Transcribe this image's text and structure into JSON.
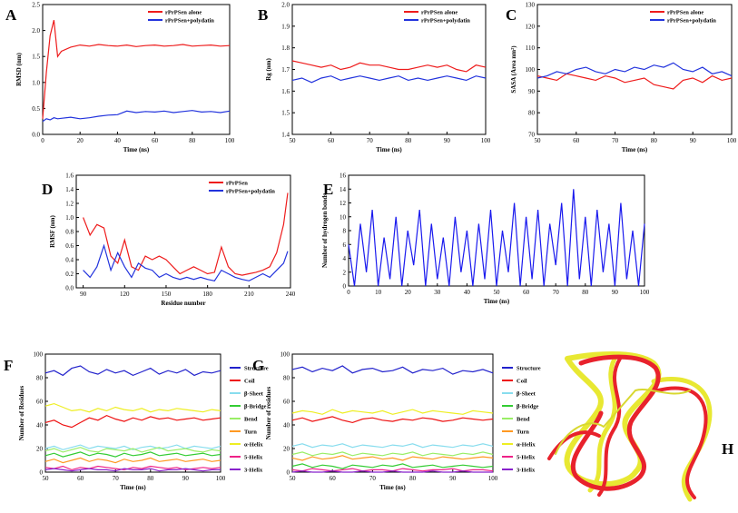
{
  "chart_data": [
    {
      "type": "line",
      "panel": "A",
      "xlabel": "Time (ns)",
      "ylabel": "RMSD (nm)",
      "legend": "upper right",
      "x": [
        0,
        2,
        4,
        6,
        8,
        10,
        15,
        20,
        25,
        30,
        35,
        40,
        45,
        50,
        55,
        60,
        65,
        70,
        75,
        80,
        85,
        90,
        95,
        100
      ],
      "xlim": [
        0,
        100
      ],
      "xticks": [
        0,
        20,
        40,
        60,
        80,
        100
      ],
      "ylim": [
        0,
        2.5
      ],
      "yticks": [
        {
          "value": 0,
          "label": "0.0"
        },
        0.5,
        {
          "value": 1,
          "label": "1.0"
        },
        1.5,
        {
          "value": 2,
          "label": "2.0"
        },
        2.5
      ],
      "series": [
        {
          "name": "rPrPSen alone",
          "color": "#ee1c1c",
          "values": [
            0.3,
            1.2,
            1.9,
            2.2,
            1.5,
            1.6,
            1.68,
            1.72,
            1.7,
            1.73,
            1.71,
            1.7,
            1.72,
            1.69,
            1.71,
            1.72,
            1.7,
            1.71,
            1.73,
            1.7,
            1.71,
            1.72,
            1.7,
            1.71
          ]
        },
        {
          "name": "rPrPSen+polydatin",
          "color": "#2233dd",
          "values": [
            0.25,
            0.3,
            0.28,
            0.32,
            0.3,
            0.31,
            0.33,
            0.3,
            0.32,
            0.35,
            0.37,
            0.38,
            0.45,
            0.42,
            0.44,
            0.43,
            0.45,
            0.42,
            0.44,
            0.46,
            0.43,
            0.44,
            0.42,
            0.45
          ]
        }
      ]
    },
    {
      "type": "line",
      "panel": "B",
      "xlabel": "Time (ns)",
      "ylabel": "Rg (nm)",
      "legend": "upper right",
      "x": [
        50,
        52.5,
        55,
        57.5,
        60,
        62.5,
        65,
        67.5,
        70,
        72.5,
        75,
        77.5,
        80,
        82.5,
        85,
        87.5,
        90,
        92.5,
        95,
        97.5,
        100
      ],
      "xlim": [
        50,
        100
      ],
      "xticks": [
        50,
        60,
        70,
        80,
        90,
        100
      ],
      "ylim": [
        1.4,
        2.0
      ],
      "yticks": [
        1.4,
        1.5,
        1.6,
        1.7,
        1.8,
        1.9,
        {
          "value": 2,
          "label": "2.0"
        }
      ],
      "series": [
        {
          "name": "rPrPSen alone",
          "color": "#ee1c1c",
          "values": [
            1.74,
            1.73,
            1.72,
            1.71,
            1.72,
            1.7,
            1.71,
            1.73,
            1.72,
            1.72,
            1.71,
            1.7,
            1.7,
            1.71,
            1.72,
            1.71,
            1.72,
            1.7,
            1.69,
            1.72,
            1.71
          ]
        },
        {
          "name": "rPrPSen+polydatin",
          "color": "#2233dd",
          "values": [
            1.65,
            1.66,
            1.64,
            1.66,
            1.67,
            1.65,
            1.66,
            1.67,
            1.66,
            1.65,
            1.66,
            1.67,
            1.65,
            1.66,
            1.65,
            1.66,
            1.67,
            1.66,
            1.65,
            1.67,
            1.66
          ]
        }
      ]
    },
    {
      "type": "line",
      "panel": "C",
      "xlabel": "Time (ns)",
      "ylabel": "SASA (Area nm²)",
      "legend": "upper right",
      "x": [
        50,
        52.5,
        55,
        57.5,
        60,
        62.5,
        65,
        67.5,
        70,
        72.5,
        75,
        77.5,
        80,
        82.5,
        85,
        87.5,
        90,
        92.5,
        95,
        97.5,
        100
      ],
      "xlim": [
        50,
        100
      ],
      "xticks": [
        50,
        60,
        70,
        80,
        90,
        100
      ],
      "ylim": [
        70,
        130
      ],
      "yticks": [
        70,
        80,
        90,
        100,
        110,
        120,
        130
      ],
      "series": [
        {
          "name": "rPrPSen alone",
          "color": "#ee1c1c",
          "values": [
            97,
            96,
            95,
            98,
            97,
            96,
            95,
            97,
            96,
            94,
            95,
            96,
            93,
            92,
            91,
            95,
            96,
            94,
            97,
            95,
            96
          ]
        },
        {
          "name": "rPrPSen+polydatin",
          "color": "#2233dd",
          "values": [
            96,
            97,
            99,
            98,
            100,
            101,
            99,
            98,
            100,
            99,
            101,
            100,
            102,
            101,
            103,
            100,
            99,
            101,
            98,
            99,
            97
          ]
        }
      ]
    },
    {
      "type": "line",
      "panel": "D",
      "xlabel": "Residue number",
      "ylabel": "RMSF (nm)",
      "legend": "upper right",
      "x": [
        90,
        95,
        100,
        105,
        110,
        115,
        120,
        125,
        130,
        135,
        140,
        145,
        150,
        155,
        160,
        165,
        170,
        175,
        180,
        185,
        190,
        195,
        200,
        205,
        210,
        215,
        220,
        225,
        230,
        235,
        238
      ],
      "xlim": [
        85,
        240
      ],
      "xticks": [
        90,
        120,
        150,
        180,
        210,
        240
      ],
      "ylim": [
        0,
        1.6
      ],
      "yticks": [
        {
          "value": 0,
          "label": "0.0"
        },
        0.2,
        0.4,
        0.6,
        0.8,
        {
          "value": 1,
          "label": "1.0"
        },
        1.2,
        1.4,
        1.6
      ],
      "series": [
        {
          "name": "rPrPSen",
          "color": "#ee1c1c",
          "values": [
            1.0,
            0.75,
            0.9,
            0.85,
            0.45,
            0.35,
            0.68,
            0.3,
            0.25,
            0.45,
            0.4,
            0.45,
            0.4,
            0.3,
            0.2,
            0.25,
            0.3,
            0.25,
            0.2,
            0.22,
            0.58,
            0.3,
            0.2,
            0.18,
            0.2,
            0.22,
            0.25,
            0.3,
            0.5,
            0.9,
            1.35
          ]
        },
        {
          "name": "rPrPSen+polydatin",
          "color": "#2233dd",
          "values": [
            0.25,
            0.15,
            0.3,
            0.6,
            0.25,
            0.5,
            0.3,
            0.15,
            0.35,
            0.28,
            0.25,
            0.15,
            0.2,
            0.15,
            0.12,
            0.15,
            0.12,
            0.15,
            0.12,
            0.1,
            0.25,
            0.2,
            0.15,
            0.12,
            0.1,
            0.15,
            0.2,
            0.15,
            0.25,
            0.35,
            0.52
          ]
        }
      ]
    },
    {
      "type": "line",
      "panel": "E",
      "xlabel": "Time (ns)",
      "ylabel": "Number of hydrogen bonds",
      "legend": "none",
      "x": [
        0,
        2,
        4,
        6,
        8,
        10,
        12,
        14,
        16,
        18,
        20,
        22,
        24,
        26,
        28,
        30,
        32,
        34,
        36,
        38,
        40,
        42,
        44,
        46,
        48,
        50,
        52,
        54,
        56,
        58,
        60,
        62,
        64,
        66,
        68,
        70,
        72,
        74,
        76,
        78,
        80,
        82,
        84,
        86,
        88,
        90,
        92,
        94,
        96,
        98,
        100
      ],
      "xlim": [
        0,
        100
      ],
      "xticks": [
        0,
        10,
        20,
        30,
        40,
        50,
        60,
        70,
        80,
        90,
        100
      ],
      "ylim": [
        0,
        16
      ],
      "yticks": [
        0,
        2,
        4,
        6,
        8,
        10,
        12,
        14,
        16
      ],
      "series": [
        {
          "name": null,
          "color": "#1a1aee",
          "values": [
            6,
            0,
            9,
            2,
            11,
            0,
            7,
            1,
            10,
            0,
            8,
            3,
            11,
            0,
            9,
            1,
            7,
            0,
            10,
            2,
            8,
            0,
            9,
            1,
            11,
            0,
            8,
            2,
            12,
            0,
            10,
            1,
            11,
            0,
            9,
            3,
            12,
            0,
            14,
            1,
            10,
            0,
            11,
            2,
            9,
            0,
            12,
            1,
            8,
            0,
            9
          ]
        }
      ]
    },
    {
      "type": "line",
      "panel": "F",
      "xlabel": "Time (ns)",
      "ylabel": "Number of Residues",
      "legend": "right",
      "x": [
        50,
        52.5,
        55,
        57.5,
        60,
        62.5,
        65,
        67.5,
        70,
        72.5,
        75,
        77.5,
        80,
        82.5,
        85,
        87.5,
        90,
        92.5,
        95,
        97.5,
        100
      ],
      "xlim": [
        50,
        100
      ],
      "xticks": [
        50,
        60,
        70,
        80,
        90,
        100
      ],
      "ylim": [
        0,
        100
      ],
      "yticks": [
        0,
        20,
        40,
        60,
        80,
        100
      ],
      "series": [
        {
          "name": "Structure",
          "color": "#2222cc",
          "values": [
            84,
            86,
            82,
            88,
            90,
            85,
            83,
            87,
            84,
            86,
            82,
            85,
            88,
            83,
            86,
            84,
            87,
            82,
            85,
            84,
            86
          ]
        },
        {
          "name": "Coil",
          "color": "#ee1111",
          "values": [
            42,
            44,
            40,
            38,
            42,
            46,
            44,
            48,
            45,
            43,
            46,
            44,
            47,
            45,
            46,
            44,
            45,
            46,
            44,
            45,
            46
          ]
        },
        {
          "name": "β-Sheet",
          "color": "#88ddee",
          "values": [
            20,
            22,
            19,
            21,
            23,
            20,
            22,
            21,
            20,
            22,
            19,
            21,
            22,
            20,
            21,
            23,
            20,
            22,
            21,
            20,
            22
          ]
        },
        {
          "name": "β-Bridge",
          "color": "#33cc33",
          "values": [
            14,
            16,
            13,
            15,
            17,
            14,
            16,
            15,
            13,
            16,
            14,
            15,
            17,
            14,
            15,
            16,
            14,
            15,
            16,
            14,
            15
          ]
        },
        {
          "name": "Bend",
          "color": "#99ee66",
          "values": [
            18,
            20,
            17,
            19,
            21,
            18,
            17,
            20,
            19,
            18,
            20,
            17,
            19,
            21,
            18,
            19,
            20,
            18,
            17,
            19,
            18
          ]
        },
        {
          "name": "Turn",
          "color": "#ff9922",
          "values": [
            9,
            11,
            8,
            10,
            12,
            9,
            11,
            10,
            8,
            11,
            9,
            10,
            12,
            9,
            10,
            11,
            9,
            10,
            11,
            9,
            10
          ]
        },
        {
          "name": "α-Helix",
          "color": "#eeee22",
          "values": [
            56,
            58,
            55,
            52,
            53,
            51,
            54,
            52,
            55,
            53,
            52,
            54,
            51,
            53,
            52,
            54,
            53,
            52,
            51,
            53,
            52
          ]
        },
        {
          "name": "5-Helix",
          "color": "#ee2288",
          "values": [
            4,
            3,
            5,
            2,
            4,
            3,
            5,
            4,
            3,
            2,
            4,
            3,
            5,
            4,
            3,
            4,
            2,
            3,
            4,
            3,
            4
          ]
        },
        {
          "name": "3-Helix",
          "color": "#8822cc",
          "values": [
            2,
            3,
            2,
            1,
            2,
            3,
            2,
            2,
            1,
            3,
            2,
            2,
            3,
            1,
            2,
            2,
            3,
            2,
            1,
            2,
            2
          ]
        }
      ]
    },
    {
      "type": "line",
      "panel": "G",
      "xlabel": "Time (ns)",
      "ylabel": "Number of residues",
      "legend": "right",
      "x": [
        50,
        52.5,
        55,
        57.5,
        60,
        62.5,
        65,
        67.5,
        70,
        72.5,
        75,
        77.5,
        80,
        82.5,
        85,
        87.5,
        90,
        92.5,
        95,
        97.5,
        100
      ],
      "xlim": [
        50,
        100
      ],
      "xticks": [
        50,
        60,
        70,
        80,
        90,
        100
      ],
      "ylim": [
        0,
        100
      ],
      "yticks": [
        0,
        20,
        40,
        60,
        80,
        100
      ],
      "series": [
        {
          "name": "Structure",
          "color": "#2222cc",
          "values": [
            87,
            89,
            85,
            88,
            86,
            90,
            84,
            87,
            88,
            85,
            86,
            89,
            84,
            87,
            86,
            88,
            83,
            86,
            85,
            87,
            84
          ]
        },
        {
          "name": "Coil",
          "color": "#ee1111",
          "values": [
            44,
            46,
            43,
            45,
            47,
            44,
            42,
            45,
            46,
            44,
            43,
            45,
            44,
            46,
            45,
            43,
            44,
            46,
            45,
            44,
            45
          ]
        },
        {
          "name": "β-Sheet",
          "color": "#88ddee",
          "values": [
            22,
            24,
            21,
            23,
            22,
            24,
            21,
            23,
            22,
            21,
            23,
            22,
            24,
            21,
            23,
            22,
            21,
            23,
            22,
            24,
            22
          ]
        },
        {
          "name": "β-Bridge",
          "color": "#33cc33",
          "values": [
            5,
            7,
            4,
            6,
            5,
            3,
            6,
            5,
            4,
            6,
            5,
            7,
            4,
            5,
            6,
            4,
            5,
            6,
            5,
            4,
            5
          ]
        },
        {
          "name": "Bend",
          "color": "#99ee66",
          "values": [
            15,
            17,
            14,
            16,
            15,
            17,
            14,
            16,
            15,
            14,
            16,
            15,
            17,
            14,
            16,
            15,
            14,
            16,
            15,
            17,
            15
          ]
        },
        {
          "name": "Turn",
          "color": "#ff9922",
          "values": [
            12,
            10,
            13,
            11,
            12,
            14,
            11,
            12,
            13,
            11,
            12,
            10,
            13,
            12,
            11,
            13,
            12,
            11,
            12,
            13,
            12
          ]
        },
        {
          "name": "α-Helix",
          "color": "#eeee22",
          "values": [
            50,
            52,
            51,
            49,
            53,
            50,
            52,
            51,
            50,
            52,
            49,
            51,
            53,
            50,
            52,
            51,
            50,
            49,
            52,
            51,
            50
          ]
        },
        {
          "name": "5-Helix",
          "color": "#ee2288",
          "values": [
            2,
            1,
            3,
            2,
            1,
            2,
            3,
            1,
            2,
            2,
            1,
            3,
            2,
            1,
            2,
            2,
            3,
            1,
            2,
            2,
            1
          ]
        },
        {
          "name": "3-Helix",
          "color": "#8822cc",
          "values": [
            0,
            1,
            0,
            0,
            1,
            0,
            0,
            1,
            0,
            0,
            1,
            0,
            0,
            0,
            1,
            0,
            0,
            1,
            0,
            0,
            0
          ]
        }
      ]
    }
  ],
  "image_panel": {
    "label": "H"
  }
}
